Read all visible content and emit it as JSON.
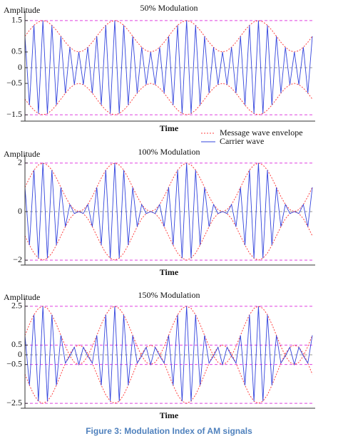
{
  "chart_data": [
    {
      "type": "line",
      "title": "50% Modulation",
      "ylabel": "Amplitude",
      "xlabel": "Time",
      "ylim": [
        -1.7,
        1.7
      ],
      "yticks": [
        1.5,
        0.5,
        0,
        {
          "value": -0.5,
          "label": "−0.5"
        },
        {
          "value": -1.5,
          "label": "−1.5"
        }
      ],
      "hlines": [
        {
          "value": 1.5,
          "color": "#e040e0"
        },
        {
          "value": -1.5,
          "color": "#e040e0"
        },
        {
          "value": 0,
          "color": "#999999"
        }
      ],
      "series": [
        {
          "name": "Message wave envelope",
          "color": "#ff4040",
          "dashed": true,
          "values": [
            1,
            1.19,
            1.35,
            1.46,
            1.5,
            1.46,
            1.35,
            1.19,
            1,
            0.81,
            0.65,
            0.54,
            0.5,
            0.54,
            0.65,
            0.81,
            1,
            1.19,
            1.35,
            1.46,
            1.5,
            1.46,
            1.35,
            1.19,
            1,
            0.81,
            0.65,
            0.54,
            0.5,
            0.54,
            0.65,
            0.81,
            1,
            1.19,
            1.35,
            1.46,
            1.5,
            1.46,
            1.35,
            1.19,
            1,
            0.81,
            0.65,
            0.54,
            0.5,
            0.54,
            0.65,
            0.81,
            1,
            1.19,
            1.35,
            1.46,
            1.5,
            1.46,
            1.35,
            1.19,
            1,
            0.81,
            0.65,
            0.54,
            0.5,
            0.54,
            0.65,
            0.81,
            1
          ]
        },
        {
          "color": "#ff4040",
          "dashed": true,
          "values": [
            -1,
            -1.19,
            -1.35,
            -1.46,
            -1.5,
            -1.46,
            -1.35,
            -1.19,
            -1,
            -0.81,
            -0.65,
            -0.54,
            -0.5,
            -0.54,
            -0.65,
            -0.81,
            -1,
            -1.19,
            -1.35,
            -1.46,
            -1.5,
            -1.46,
            -1.35,
            -1.19,
            -1,
            -0.81,
            -0.65,
            -0.54,
            -0.5,
            -0.54,
            -0.65,
            -0.81,
            -1,
            -1.19,
            -1.35,
            -1.46,
            -1.5,
            -1.46,
            -1.35,
            -1.19,
            -1,
            -0.81,
            -0.65,
            -0.54,
            -0.5,
            -0.54,
            -0.65,
            -0.81,
            -1,
            -1.19,
            -1.35,
            -1.46,
            -1.5,
            -1.46,
            -1.35,
            -1.19,
            -1,
            -0.81,
            -0.65,
            -0.54,
            -0.5,
            -0.54,
            -0.65,
            -0.81,
            -1
          ]
        },
        {
          "name": "Carrier wave",
          "color": "#3344dd",
          "dashed": false,
          "values": [
            1,
            -1.19,
            1.35,
            -1.46,
            1.5,
            -1.46,
            1.35,
            -1.19,
            1,
            -0.81,
            0.65,
            -0.54,
            0.5,
            -0.54,
            0.65,
            -0.81,
            1,
            -1.19,
            1.35,
            -1.46,
            1.5,
            -1.46,
            1.35,
            -1.19,
            1,
            -0.81,
            0.65,
            -0.54,
            0.5,
            -0.54,
            0.65,
            -0.81,
            1,
            -1.19,
            1.35,
            -1.46,
            1.5,
            -1.46,
            1.35,
            -1.19,
            1,
            -0.81,
            0.65,
            -0.54,
            0.5,
            -0.54,
            0.65,
            -0.81,
            1,
            -1.19,
            1.35,
            -1.46,
            1.5,
            -1.46,
            1.35,
            -1.19,
            1,
            -0.81,
            0.65,
            -0.54,
            0.5,
            -0.54,
            0.65,
            -0.81,
            1
          ]
        }
      ]
    },
    {
      "type": "line",
      "title": "100% Modulation",
      "ylabel": "Amplitude",
      "xlabel": "Time",
      "ylim": [
        -2.2,
        2.2
      ],
      "yticks": [
        2,
        0,
        {
          "value": -2,
          "label": "−2"
        }
      ],
      "hlines": [
        {
          "value": 2,
          "color": "#e040e0"
        },
        {
          "value": -2,
          "color": "#e040e0"
        },
        {
          "value": 0,
          "color": "#999999"
        }
      ],
      "series": [
        {
          "color": "#ff4040",
          "dashed": true,
          "values": [
            1,
            1.38,
            1.71,
            1.92,
            2,
            1.92,
            1.71,
            1.38,
            1,
            0.62,
            0.29,
            0.08,
            0,
            0.08,
            0.29,
            0.62,
            1,
            1.38,
            1.71,
            1.92,
            2,
            1.92,
            1.71,
            1.38,
            1,
            0.62,
            0.29,
            0.08,
            0,
            0.08,
            0.29,
            0.62,
            1,
            1.38,
            1.71,
            1.92,
            2,
            1.92,
            1.71,
            1.38,
            1,
            0.62,
            0.29,
            0.08,
            0,
            0.08,
            0.29,
            0.62,
            1,
            1.38,
            1.71,
            1.92,
            2,
            1.92,
            1.71,
            1.38,
            1,
            0.62,
            0.29,
            0.08,
            0,
            0.08,
            0.29,
            0.62,
            1
          ]
        },
        {
          "color": "#ff4040",
          "dashed": true,
          "values": [
            -1,
            -1.38,
            -1.71,
            -1.92,
            -2,
            -1.92,
            -1.71,
            -1.38,
            -1,
            -0.62,
            -0.29,
            -0.08,
            0,
            -0.08,
            -0.29,
            -0.62,
            -1,
            -1.38,
            -1.71,
            -1.92,
            -2,
            -1.92,
            -1.71,
            -1.38,
            -1,
            -0.62,
            -0.29,
            -0.08,
            0,
            -0.08,
            -0.29,
            -0.62,
            -1,
            -1.38,
            -1.71,
            -1.92,
            -2,
            -1.92,
            -1.71,
            -1.38,
            -1,
            -0.62,
            -0.29,
            -0.08,
            0,
            -0.08,
            -0.29,
            -0.62,
            -1,
            -1.38,
            -1.71,
            -1.92,
            -2,
            -1.92,
            -1.71,
            -1.38,
            -1,
            -0.62,
            -0.29,
            -0.08,
            0,
            -0.08,
            -0.29,
            -0.62,
            -1
          ]
        },
        {
          "color": "#3344dd",
          "dashed": false,
          "values": [
            1,
            -1.38,
            1.71,
            -1.92,
            2,
            -1.92,
            1.71,
            -1.38,
            1,
            -0.62,
            0.29,
            -0.08,
            0,
            -0.08,
            0.29,
            -0.62,
            1,
            -1.38,
            1.71,
            -1.92,
            2,
            -1.92,
            1.71,
            -1.38,
            1,
            -0.62,
            0.29,
            -0.08,
            0,
            -0.08,
            0.29,
            -0.62,
            1,
            -1.38,
            1.71,
            -1.92,
            2,
            -1.92,
            1.71,
            -1.38,
            1,
            -0.62,
            0.29,
            -0.08,
            0,
            -0.08,
            0.29,
            -0.62,
            1,
            -1.38,
            1.71,
            -1.92,
            2,
            -1.92,
            1.71,
            -1.38,
            1,
            -0.62,
            0.29,
            -0.08,
            0,
            -0.08,
            0.29,
            -0.62,
            1
          ]
        }
      ]
    },
    {
      "type": "line",
      "title": "150% Modulation",
      "ylabel": "Amplitude",
      "xlabel": "Time",
      "ylim": [
        -2.75,
        2.75
      ],
      "yticks": [
        2.5,
        0.5,
        0,
        {
          "value": -0.5,
          "label": "−0.5"
        },
        {
          "value": -2.5,
          "label": "−2.5"
        }
      ],
      "hlines": [
        {
          "value": 2.5,
          "color": "#e040e0"
        },
        {
          "value": 0.5,
          "color": "#e040e0"
        },
        {
          "value": -0.5,
          "color": "#e040e0"
        },
        {
          "value": -2.5,
          "color": "#e040e0"
        },
        {
          "value": 0,
          "color": "#999999"
        }
      ],
      "series": [
        {
          "color": "#ff4040",
          "dashed": true,
          "values": [
            1,
            1.57,
            2.06,
            2.39,
            2.5,
            2.39,
            2.06,
            1.57,
            1,
            0.43,
            -0.06,
            -0.39,
            -0.5,
            -0.39,
            -0.06,
            0.43,
            1,
            1.57,
            2.06,
            2.39,
            2.5,
            2.39,
            2.06,
            1.57,
            1,
            0.43,
            -0.06,
            -0.39,
            -0.5,
            -0.39,
            -0.06,
            0.43,
            1,
            1.57,
            2.06,
            2.39,
            2.5,
            2.39,
            2.06,
            1.57,
            1,
            0.43,
            -0.06,
            -0.39,
            -0.5,
            -0.39,
            -0.06,
            0.43,
            1,
            1.57,
            2.06,
            2.39,
            2.5,
            2.39,
            2.06,
            1.57,
            1,
            0.43,
            -0.06,
            -0.39,
            -0.5,
            -0.39,
            -0.06,
            0.43,
            1
          ]
        },
        {
          "color": "#ff4040",
          "dashed": true,
          "values": [
            -1,
            -1.57,
            -2.06,
            -2.39,
            -2.5,
            -2.39,
            -2.06,
            -1.57,
            -1,
            -0.43,
            0.06,
            0.39,
            0.5,
            0.39,
            0.06,
            -0.43,
            -1,
            -1.57,
            -2.06,
            -2.39,
            -2.5,
            -2.39,
            -2.06,
            -1.57,
            -1,
            -0.43,
            0.06,
            0.39,
            0.5,
            0.39,
            0.06,
            -0.43,
            -1,
            -1.57,
            -2.06,
            -2.39,
            -2.5,
            -2.39,
            -2.06,
            -1.57,
            -1,
            -0.43,
            0.06,
            0.39,
            0.5,
            0.39,
            0.06,
            -0.43,
            -1,
            -1.57,
            -2.06,
            -2.39,
            -2.5,
            -2.39,
            -2.06,
            -1.57,
            -1,
            -0.43,
            0.06,
            0.39,
            0.5,
            0.39,
            0.06,
            -0.43,
            -1
          ]
        },
        {
          "color": "#3344dd",
          "dashed": false,
          "values": [
            1,
            -1.57,
            2.06,
            -2.39,
            2.5,
            -2.39,
            2.06,
            -1.57,
            1,
            -0.43,
            -0.06,
            0.39,
            -0.5,
            0.39,
            -0.06,
            -0.43,
            1,
            -1.57,
            2.06,
            -2.39,
            2.5,
            -2.39,
            2.06,
            -1.57,
            1,
            -0.43,
            -0.06,
            0.39,
            -0.5,
            0.39,
            -0.06,
            -0.43,
            1,
            -1.57,
            2.06,
            -2.39,
            2.5,
            -2.39,
            2.06,
            -1.57,
            1,
            -0.43,
            -0.06,
            0.39,
            -0.5,
            0.39,
            -0.06,
            -0.43,
            1,
            -1.57,
            2.06,
            -2.39,
            2.5,
            -2.39,
            2.06,
            -1.57,
            1,
            -0.43,
            -0.06,
            0.39,
            -0.5,
            0.39,
            -0.06,
            -0.43,
            1
          ]
        }
      ]
    }
  ],
  "caption": "Figure 3: Modulation Index of AM signals"
}
